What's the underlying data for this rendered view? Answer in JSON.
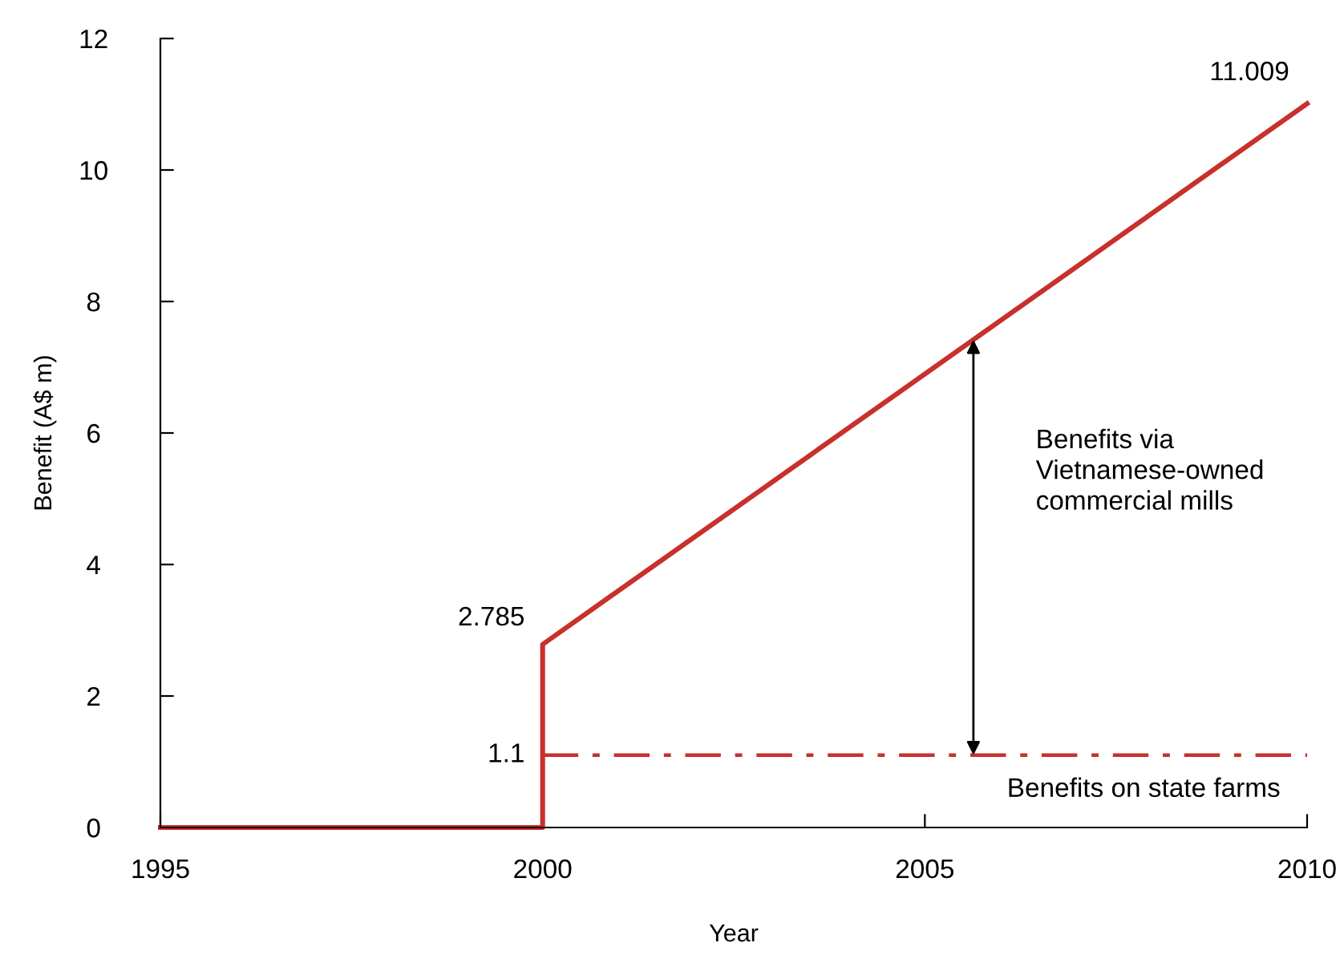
{
  "chart_data": {
    "type": "line",
    "xlabel": "Year",
    "ylabel": "Benefit (A$ m)",
    "series": [
      {
        "color": "#c8302c",
        "x": [
          1995,
          2000,
          2000,
          2010
        ],
        "values": [
          0,
          0,
          2.785,
          11.009
        ],
        "value_labels": [
          null,
          null,
          "2.785",
          "11.009"
        ],
        "line_style": "solid"
      },
      {
        "name": "Benefits on state farms",
        "color": "#c8302c",
        "x": [
          2000,
          2010
        ],
        "values": [
          1.1,
          1.1
        ],
        "value_labels": [
          "1.1",
          null
        ],
        "line_style": "dashdot"
      }
    ],
    "annotations": [
      "Benefits via\nVietnamese-owned\ncommercial mills"
    ],
    "xlim": [
      1995,
      2010
    ],
    "xticks": [
      1995,
      2000,
      2005,
      2010
    ],
    "ylim": [
      0,
      12
    ],
    "yticks": [
      0,
      2,
      4,
      6,
      8,
      10,
      12
    ],
    "grid": false,
    "legend": false,
    "marker": "none"
  }
}
